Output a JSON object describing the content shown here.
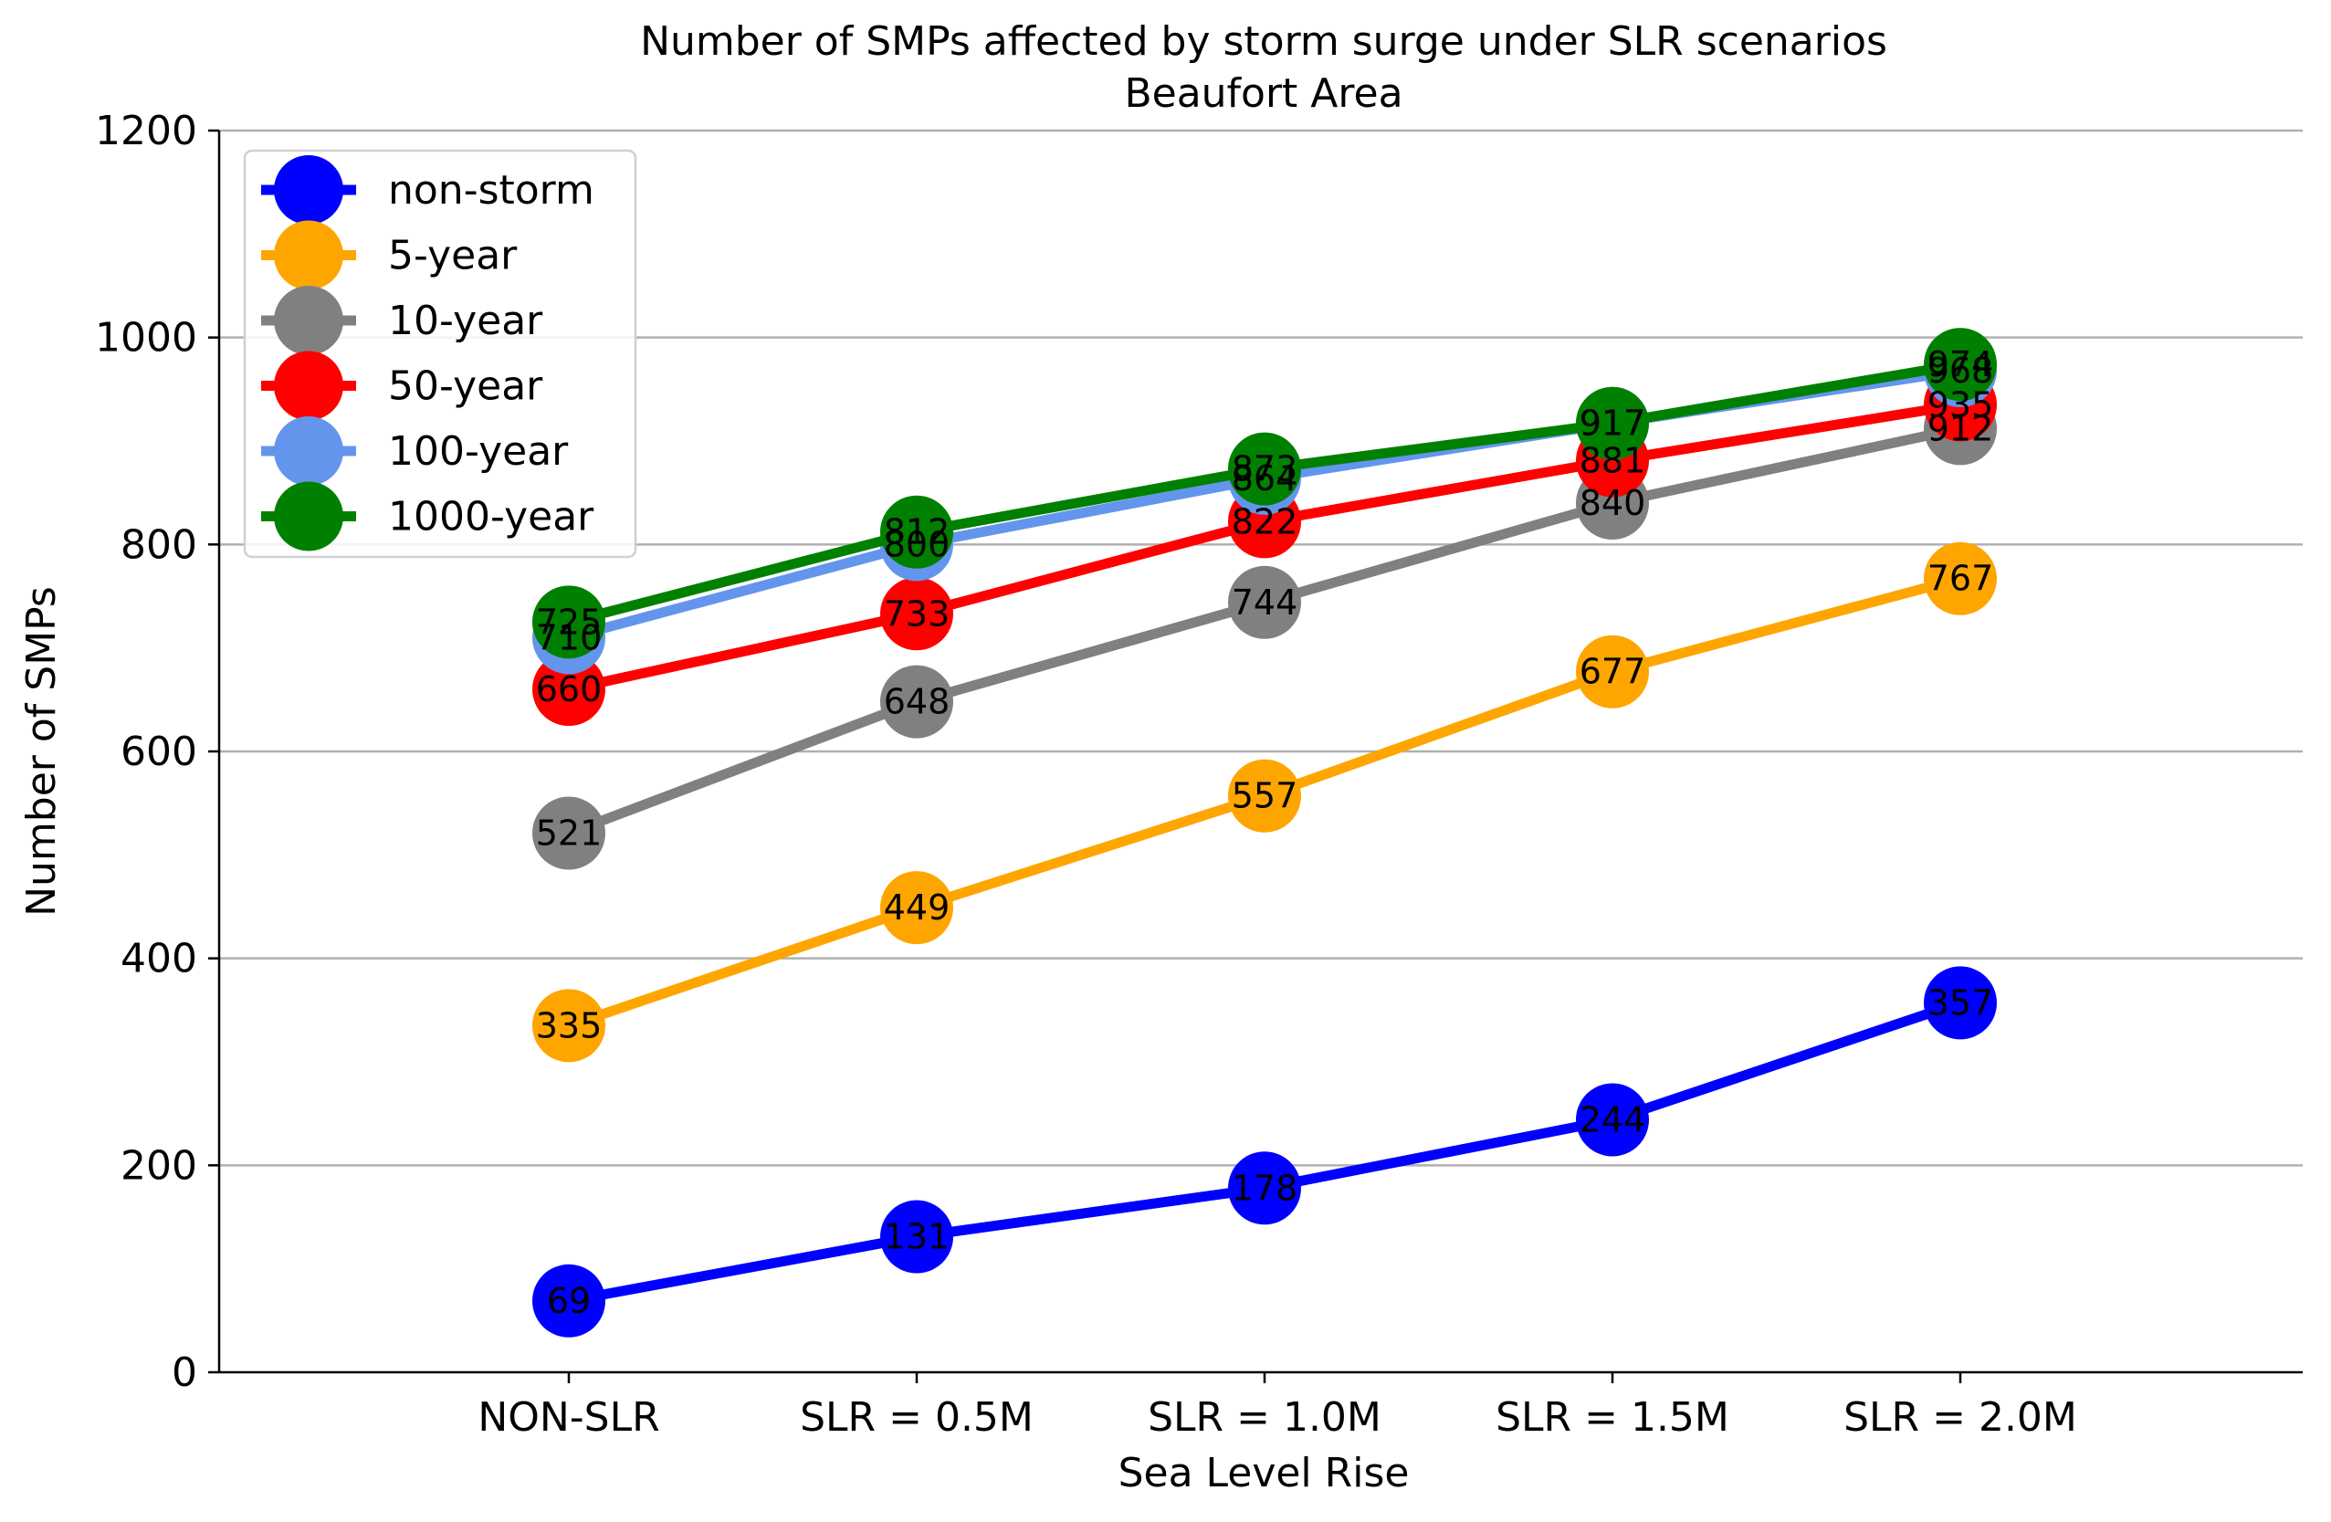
{
  "chart_data": {
    "type": "line",
    "title": "Number of SMPs affected by storm surge under SLR scenarios",
    "subtitle": "Beaufort Area",
    "xlabel": "Sea Level Rise",
    "ylabel": "Number of SMPs",
    "categories": [
      "NON-SLR",
      "SLR = 0.5M",
      "SLR = 1.0M",
      "SLR = 1.5M",
      "SLR = 2.0M"
    ],
    "ylim": [
      0,
      1200
    ],
    "yticks": [
      0,
      200,
      400,
      600,
      800,
      1000,
      1200
    ],
    "grid": "horizontal",
    "legend_position": "top-left",
    "series": [
      {
        "name": "non-storm",
        "color": "#0000ff",
        "values": [
          69,
          131,
          178,
          244,
          357
        ]
      },
      {
        "name": "5-year",
        "color": "#ffa500",
        "values": [
          335,
          449,
          557,
          677,
          767
        ]
      },
      {
        "name": "10-year",
        "color": "#808080",
        "values": [
          521,
          648,
          744,
          840,
          912
        ]
      },
      {
        "name": "50-year",
        "color": "#ff0000",
        "values": [
          660,
          733,
          822,
          881,
          935
        ]
      },
      {
        "name": "100-year",
        "color": "#6495ed",
        "values": [
          710,
          800,
          864,
          917,
          968
        ]
      },
      {
        "name": "1000-year",
        "color": "#008000",
        "values": [
          725,
          812,
          873,
          917,
          974
        ]
      }
    ]
  }
}
